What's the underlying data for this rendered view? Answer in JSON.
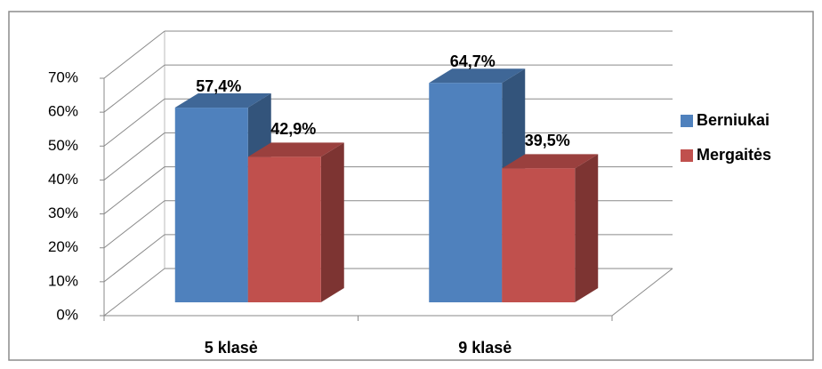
{
  "chart_data": {
    "type": "bar3d",
    "categories": [
      "5 klasė",
      "9 klasė"
    ],
    "series": [
      {
        "name": "Berniukai",
        "color": "#4f81bd",
        "values": [
          57.4,
          64.7
        ],
        "value_labels": [
          "57,4%",
          "64,7%"
        ]
      },
      {
        "name": "Mergaitės",
        "color": "#c0504d",
        "values": [
          42.9,
          39.5
        ],
        "value_labels": [
          "42,9%",
          "39,5%"
        ]
      }
    ],
    "ylim": [
      0,
      70
    ],
    "yticks": [
      {
        "value": 0,
        "label": "0%"
      },
      {
        "value": 10,
        "label": "10%"
      },
      {
        "value": 20,
        "label": "20%"
      },
      {
        "value": 30,
        "label": "30%"
      },
      {
        "value": 40,
        "label": "40%"
      },
      {
        "value": 50,
        "label": "50%"
      },
      {
        "value": 60,
        "label": "60%"
      },
      {
        "value": 70,
        "label": "70%"
      }
    ],
    "grid": true,
    "legend": "right"
  }
}
